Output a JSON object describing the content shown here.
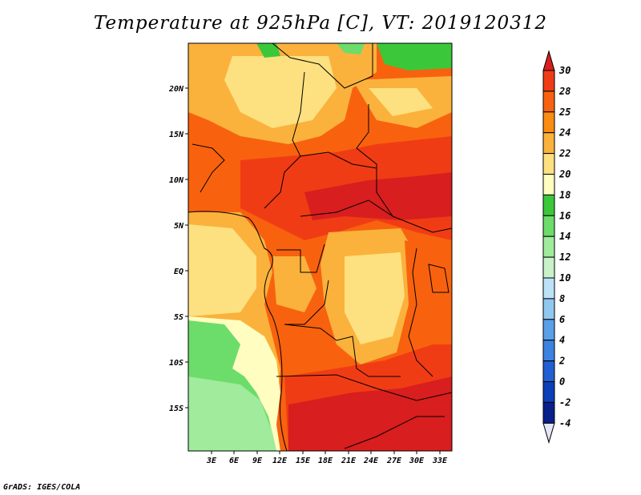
{
  "title": "Temperature at 925hPa [C], VT: 2019120312",
  "credit": "GrADS: IGES/COLA",
  "map": {
    "variable": "Temperature at 925hPa",
    "units": "C",
    "valid_time": "2019120312",
    "lat_labels": [
      "20N",
      "15N",
      "10N",
      "5N",
      "EQ",
      "5S",
      "10S",
      "15S"
    ],
    "lat_values": [
      20,
      15,
      10,
      5,
      0,
      -5,
      -10,
      -15
    ],
    "lon_labels": [
      "3E",
      "6E",
      "9E",
      "12E",
      "15E",
      "18E",
      "21E",
      "24E",
      "27E",
      "30E",
      "33E"
    ],
    "lon_values": [
      3,
      6,
      9,
      12,
      15,
      18,
      21,
      24,
      27,
      30,
      33
    ],
    "lat_range": [
      -20,
      24.5
    ],
    "lon_range": [
      0.3,
      34.8
    ]
  },
  "colorbar": {
    "levels": [
      "30",
      "28",
      "25",
      "24",
      "22",
      "20",
      "18",
      "16",
      "14",
      "12",
      "10",
      "8",
      "6",
      "4",
      "2",
      "0",
      "-2",
      "-4"
    ],
    "colors": [
      "#d81e1e",
      "#f03c14",
      "#f8620e",
      "#fa8c12",
      "#fab23c",
      "#fde080",
      "#fffdc0",
      "#3ac83a",
      "#6cdc6a",
      "#a0eb9c",
      "#c8f2c8",
      "#bde2f8",
      "#90c8f0",
      "#5aa0e8",
      "#3c82e0",
      "#2060d2",
      "#0c40b8",
      "#08208c",
      "#0c0c5c"
    ],
    "under_color": "#e6e6fa"
  }
}
